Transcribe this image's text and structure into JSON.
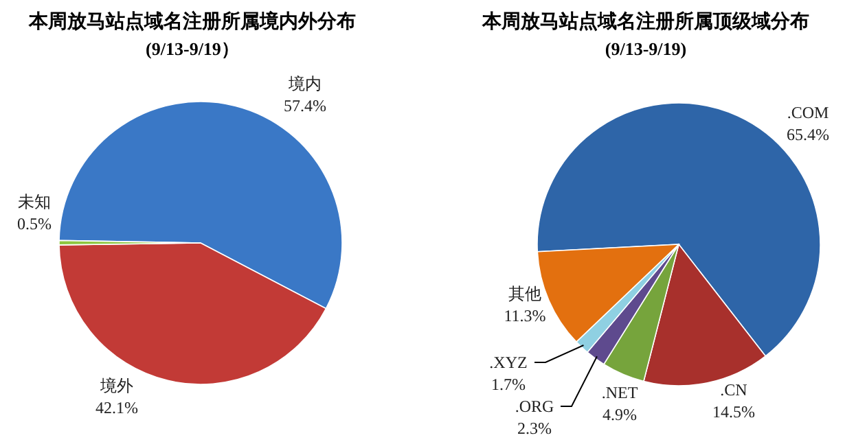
{
  "chart_data": [
    {
      "type": "pie",
      "title": "本周放马站点域名注册所属境内外分布",
      "subtitle": "(9/13-9/19）",
      "categories": [
        "境内",
        "境外",
        "未知"
      ],
      "values": [
        57.4,
        42.1,
        0.5
      ],
      "value_labels": [
        "57.4%",
        "42.1%",
        "0.5%"
      ],
      "colors": [
        "#3a78c6",
        "#c23a36",
        "#8dc63f"
      ]
    },
    {
      "type": "pie",
      "title": "本周放马站点域名注册所属顶级域分布",
      "subtitle": "(9/13-9/19)",
      "categories": [
        ".COM",
        ".CN",
        ".NET",
        ".ORG",
        ".XYZ",
        "其他"
      ],
      "values": [
        65.4,
        14.5,
        4.9,
        2.3,
        1.7,
        11.3
      ],
      "value_labels": [
        "65.4%",
        "14.5%",
        "4.9%",
        "2.3%",
        "1.7%",
        "11.3%"
      ],
      "colors": [
        "#2e65a8",
        "#a8302c",
        "#76a43c",
        "#5e4a8e",
        "#8fd0e2",
        "#e3700f"
      ]
    }
  ]
}
